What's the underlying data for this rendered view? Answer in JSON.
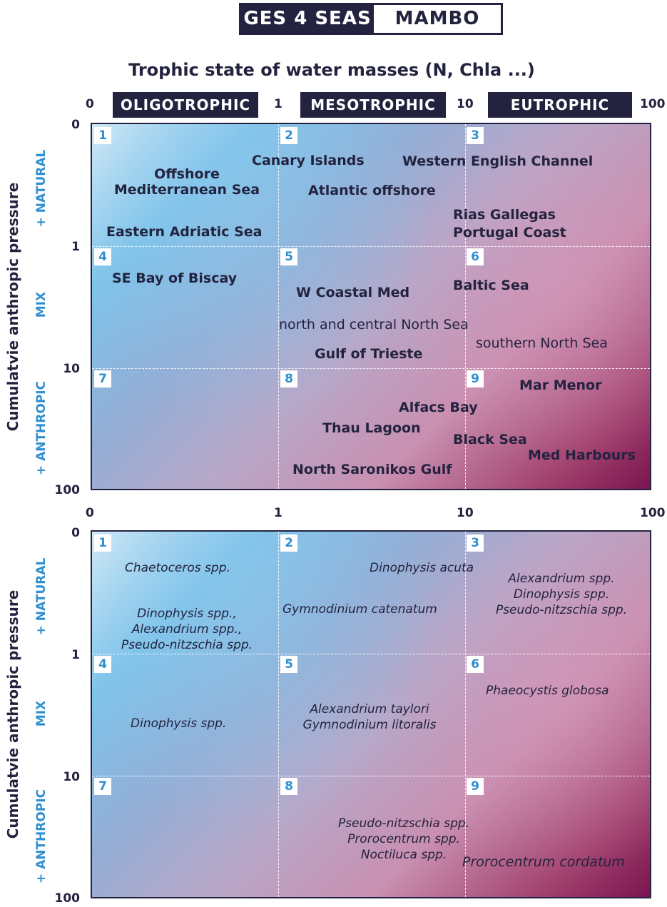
{
  "logo": {
    "left": "GES 4 SEAS",
    "right": "MAMBO"
  },
  "x_axis": {
    "title": "Trophic state of water masses (N, Chla ...)",
    "ticks": [
      "0",
      "1",
      "10",
      "100"
    ],
    "categories": [
      "OLIGOTROPHIC",
      "MESOTROPHIC",
      "EUTROPHIC"
    ]
  },
  "y_axis": {
    "title": "Cumulatvie anthropic pressure",
    "ticks": [
      "0",
      "1",
      "10",
      "100"
    ],
    "bands": [
      "+ NATURAL",
      "MIX",
      "+ ANTHROPIC"
    ]
  },
  "cell_numbers": [
    "1",
    "2",
    "3",
    "4",
    "5",
    "6",
    "7",
    "8",
    "9"
  ],
  "top_panel": {
    "offshore_med": [
      "Offshore",
      "Mediterranean Sea"
    ],
    "eastern_adriatic": "Eastern Adriatic Sea",
    "canary": "Canary Islands",
    "atlantic": "Atlantic offshore",
    "western_channel": "Western English Channel",
    "rias": [
      "Rias Gallegas",
      "Portugal Coast"
    ],
    "se_biscay": "SE Bay of Biscay",
    "w_coastal_med": "W Coastal Med",
    "north_central_north_sea": "north and central North Sea",
    "gulf_trieste": "Gulf of Trieste",
    "baltic": "Baltic Sea",
    "southern_north_sea": "southern North Sea",
    "mar_menor": "Mar Menor",
    "alfacs": "Alfacs Bay",
    "thau": "Thau Lagoon",
    "black_sea": "Black Sea",
    "med_harbours": "Med Harbours",
    "saronikos": "North Saronikos Gulf"
  },
  "bottom_panel": {
    "c1_chaetoceros": "Chaetoceros spp.",
    "c1_group": [
      "Dinophysis spp.,",
      "Alexandrium spp.,",
      "Pseudo-nitzschia spp."
    ],
    "c2_dinophysis_acuta": "Dinophysis acuta",
    "c2_gymnodinium": "Gymnodinium catenatum",
    "c3_group": [
      "Alexandrium spp.",
      "Dinophysis spp.",
      "Pseudo-nitzschia spp."
    ],
    "c4_dinophysis": "Dinophysis spp.",
    "c5_group": [
      "Alexandrium taylori",
      "Gymnodinium litoralis"
    ],
    "c6_phaeocystis": "Phaeocystis globosa",
    "c8_group": [
      "Pseudo-nitzschia spp.",
      "Prorocentrum spp.",
      "Noctiluca spp."
    ],
    "c9_prorocentrum": "Prorocentrum cordatum"
  }
}
